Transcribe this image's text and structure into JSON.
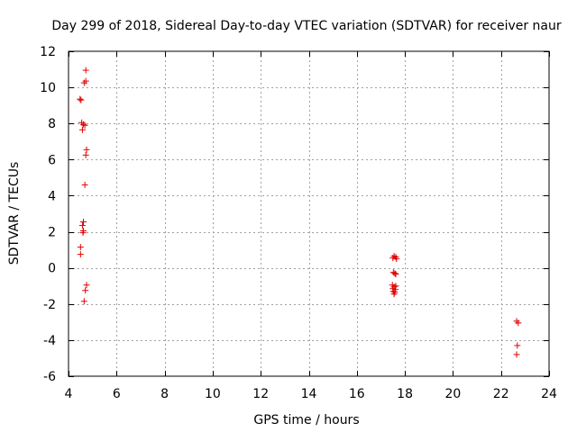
{
  "chart_data": {
    "type": "scatter",
    "title": "Day 299 of 2018, Sidereal Day-to-day VTEC variation (SDTVAR) for receiver naur",
    "xlabel": "GPS time / hours",
    "ylabel": "SDTVAR / TECUs",
    "xlim": [
      4,
      24
    ],
    "ylim": [
      -6,
      12
    ],
    "xticks": [
      4,
      6,
      8,
      10,
      12,
      14,
      16,
      18,
      20,
      22,
      24
    ],
    "yticks": [
      -6,
      -4,
      -2,
      0,
      2,
      4,
      6,
      8,
      10,
      12
    ],
    "grid": true,
    "marker": "+",
    "color": "#e00000",
    "series": [
      {
        "name": "SDTVAR",
        "points": [
          [
            4.72,
            10.95
          ],
          [
            4.72,
            10.35
          ],
          [
            4.65,
            10.25
          ],
          [
            4.48,
            9.35
          ],
          [
            4.52,
            9.3
          ],
          [
            4.55,
            8.05
          ],
          [
            4.62,
            7.95
          ],
          [
            4.68,
            7.9
          ],
          [
            4.58,
            7.65
          ],
          [
            4.75,
            6.55
          ],
          [
            4.72,
            6.25
          ],
          [
            4.68,
            4.6
          ],
          [
            4.62,
            2.55
          ],
          [
            4.58,
            2.35
          ],
          [
            4.62,
            2.05
          ],
          [
            4.6,
            1.95
          ],
          [
            4.5,
            1.15
          ],
          [
            4.5,
            0.75
          ],
          [
            4.75,
            -0.95
          ],
          [
            4.7,
            -1.25
          ],
          [
            4.65,
            -1.85
          ],
          [
            17.55,
            0.65
          ],
          [
            17.62,
            0.6
          ],
          [
            17.5,
            0.55
          ],
          [
            17.65,
            0.5
          ],
          [
            17.52,
            -0.25
          ],
          [
            17.58,
            -0.3
          ],
          [
            17.62,
            -0.35
          ],
          [
            17.48,
            -0.95
          ],
          [
            17.62,
            -1.0
          ],
          [
            17.55,
            -1.05
          ],
          [
            17.5,
            -1.15
          ],
          [
            17.6,
            -1.2
          ],
          [
            17.52,
            -1.3
          ],
          [
            17.58,
            -1.35
          ],
          [
            17.55,
            -1.45
          ],
          [
            22.65,
            -2.95
          ],
          [
            22.72,
            -3.05
          ],
          [
            22.68,
            -4.3
          ],
          [
            22.65,
            -4.8
          ]
        ]
      }
    ]
  }
}
